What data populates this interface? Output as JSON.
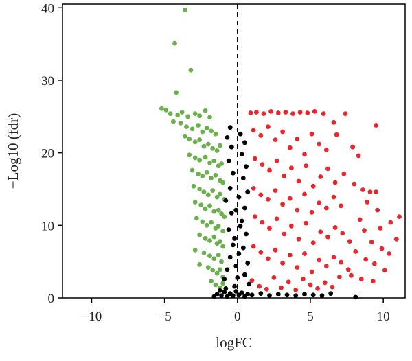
{
  "chart_data": {
    "type": "scatter",
    "title": "",
    "xlabel": "logFC",
    "ylabel": "−Log10 (fdr)",
    "xlim": [
      -12,
      11.5
    ],
    "ylim": [
      0,
      40.5
    ],
    "x_ticks": [
      -10,
      -5,
      0,
      5,
      10
    ],
    "x_tick_labels": [
      "−10",
      "−5",
      "0",
      "5",
      "10"
    ],
    "y_ticks": [
      0,
      10,
      20,
      30,
      40
    ],
    "y_tick_labels": [
      "0",
      "10",
      "20",
      "30",
      "40"
    ],
    "reference_line": {
      "x": 0,
      "style": "dashed",
      "color": "#000000"
    },
    "grid": false,
    "legend": "none",
    "series": [
      {
        "color": "#6ab04c",
        "points": [
          [
            -3.6,
            39.7
          ],
          [
            -4.3,
            35.1
          ],
          [
            -3.2,
            31.4
          ],
          [
            -4.2,
            28.3
          ],
          [
            -5.2,
            26.1
          ],
          [
            -4.9,
            25.9
          ],
          [
            -4.6,
            25.4
          ],
          [
            -4.1,
            25.2
          ],
          [
            -3.8,
            25.6
          ],
          [
            -3.4,
            25.0
          ],
          [
            -2.9,
            25.4
          ],
          [
            -2.6,
            25.1
          ],
          [
            -2.2,
            25.8
          ],
          [
            -1.9,
            24.9
          ],
          [
            -4.4,
            24.3
          ],
          [
            -3.9,
            24.1
          ],
          [
            -3.5,
            23.6
          ],
          [
            -3.1,
            23.3
          ],
          [
            -2.7,
            23.8
          ],
          [
            -2.4,
            22.9
          ],
          [
            -2.1,
            23.4
          ],
          [
            -1.8,
            23.0
          ],
          [
            -1.5,
            22.6
          ],
          [
            -3.6,
            22.3
          ],
          [
            -3.3,
            21.9
          ],
          [
            -2.9,
            21.5
          ],
          [
            -2.6,
            21.8
          ],
          [
            -2.3,
            20.9
          ],
          [
            -2.0,
            21.2
          ],
          [
            -1.7,
            20.6
          ],
          [
            -1.4,
            20.3
          ],
          [
            -1.2,
            21.0
          ],
          [
            -3.3,
            19.7
          ],
          [
            -2.9,
            19.3
          ],
          [
            -2.6,
            19.0
          ],
          [
            -2.2,
            19.4
          ],
          [
            -1.9,
            18.6
          ],
          [
            -1.6,
            18.9
          ],
          [
            -1.3,
            18.2
          ],
          [
            -1.1,
            18.5
          ],
          [
            -3.1,
            17.6
          ],
          [
            -2.7,
            17.1
          ],
          [
            -2.4,
            16.8
          ],
          [
            -2.1,
            17.3
          ],
          [
            -1.8,
            16.5
          ],
          [
            -1.5,
            16.9
          ],
          [
            -1.2,
            16.2
          ],
          [
            -1.0,
            15.9
          ],
          [
            -3.0,
            15.4
          ],
          [
            -2.6,
            15.0
          ],
          [
            -2.3,
            14.6
          ],
          [
            -2.0,
            14.2
          ],
          [
            -1.7,
            14.8
          ],
          [
            -1.4,
            13.9
          ],
          [
            -1.2,
            14.3
          ],
          [
            -0.9,
            13.6
          ],
          [
            -2.9,
            13.2
          ],
          [
            -2.5,
            12.8
          ],
          [
            -2.2,
            12.3
          ],
          [
            -1.9,
            12.7
          ],
          [
            -1.6,
            11.9
          ],
          [
            -1.3,
            12.1
          ],
          [
            -1.1,
            11.6
          ],
          [
            -0.9,
            11.2
          ],
          [
            -2.8,
            11.0
          ],
          [
            -2.4,
            10.5
          ],
          [
            -2.1,
            10.0
          ],
          [
            -1.8,
            10.4
          ],
          [
            -1.5,
            9.6
          ],
          [
            -1.3,
            9.9
          ],
          [
            -1.0,
            9.2
          ],
          [
            -2.6,
            8.7
          ],
          [
            -2.2,
            8.2
          ],
          [
            -1.9,
            7.9
          ],
          [
            -1.6,
            8.4
          ],
          [
            -1.4,
            7.5
          ],
          [
            -1.2,
            7.8
          ],
          [
            -1.0,
            7.1
          ],
          [
            -2.9,
            6.6
          ],
          [
            -2.3,
            6.2
          ],
          [
            -1.9,
            5.8
          ],
          [
            -1.6,
            5.4
          ],
          [
            -1.3,
            5.9
          ],
          [
            -1.1,
            5.0
          ],
          [
            -2.6,
            4.6
          ],
          [
            -2.0,
            4.2
          ],
          [
            -1.7,
            3.8
          ],
          [
            -1.4,
            3.4
          ],
          [
            -1.2,
            3.9
          ],
          [
            -1.0,
            2.9
          ],
          [
            -1.8,
            2.3
          ],
          [
            -1.5,
            1.8
          ],
          [
            -1.2,
            1.4
          ],
          [
            -1.0,
            2.0
          ]
        ]
      },
      {
        "color": "#000000",
        "points": [
          [
            -1.4,
            0.5
          ],
          [
            -1.1,
            0.3
          ],
          [
            -0.9,
            0.8
          ],
          [
            -0.7,
            0.2
          ],
          [
            -0.5,
            0.6
          ],
          [
            -0.3,
            0.3
          ],
          [
            -0.1,
            0.9
          ],
          [
            0.1,
            0.4
          ],
          [
            0.3,
            0.7
          ],
          [
            0.5,
            0.2
          ],
          [
            0.7,
            0.5
          ],
          [
            -0.9,
            2.6
          ],
          [
            -0.7,
            3.9
          ],
          [
            -0.5,
            5.6
          ],
          [
            -0.3,
            7.3
          ],
          [
            -0.6,
            9.4
          ],
          [
            -0.4,
            11.7
          ],
          [
            -0.8,
            13.4
          ],
          [
            -0.5,
            15.1
          ],
          [
            -0.3,
            17.2
          ],
          [
            -0.6,
            18.9
          ],
          [
            -0.4,
            20.8
          ],
          [
            -0.7,
            22.1
          ],
          [
            -0.5,
            23.5
          ],
          [
            0.2,
            22.6
          ],
          [
            0.5,
            21.4
          ],
          [
            0.3,
            19.8
          ],
          [
            0.6,
            18.1
          ],
          [
            0.4,
            16.5
          ],
          [
            0.7,
            14.6
          ],
          [
            0.5,
            12.4
          ],
          [
            0.3,
            10.6
          ],
          [
            0.6,
            8.8
          ],
          [
            0.4,
            6.9
          ],
          [
            0.7,
            4.8
          ],
          [
            0.5,
            3.2
          ],
          [
            0.8,
            1.9
          ],
          [
            -0.2,
            1.6
          ],
          [
            0.0,
            2.8
          ],
          [
            -0.1,
            4.4
          ],
          [
            0.1,
            6.1
          ],
          [
            -0.2,
            8.2
          ],
          [
            0.2,
            9.9
          ],
          [
            -0.1,
            12.1
          ],
          [
            0.1,
            13.9
          ],
          [
            1.0,
            0.4
          ],
          [
            1.6,
            0.6
          ],
          [
            2.2,
            0.3
          ],
          [
            2.8,
            0.5
          ],
          [
            3.4,
            0.4
          ],
          [
            4.0,
            0.3
          ],
          [
            4.6,
            0.5
          ],
          [
            5.2,
            0.4
          ],
          [
            5.8,
            0.3
          ],
          [
            6.4,
            0.6
          ],
          [
            8.1,
            0.1
          ],
          [
            -1.6,
            0.2
          ],
          [
            -1.2,
            1.0
          ],
          [
            -0.8,
            1.3
          ]
        ]
      },
      {
        "color": "#e8262b",
        "points": [
          [
            0.9,
            25.5
          ],
          [
            1.3,
            25.6
          ],
          [
            1.8,
            25.4
          ],
          [
            2.3,
            25.7
          ],
          [
            2.8,
            25.5
          ],
          [
            3.3,
            25.6
          ],
          [
            3.8,
            25.4
          ],
          [
            4.3,
            25.6
          ],
          [
            4.8,
            25.5
          ],
          [
            5.3,
            25.7
          ],
          [
            5.9,
            25.4
          ],
          [
            1.1,
            23.1
          ],
          [
            1.6,
            22.4
          ],
          [
            2.1,
            23.6
          ],
          [
            2.6,
            21.8
          ],
          [
            3.1,
            22.9
          ],
          [
            3.6,
            20.7
          ],
          [
            4.1,
            21.9
          ],
          [
            4.6,
            19.8
          ],
          [
            5.1,
            22.6
          ],
          [
            5.6,
            21.2
          ],
          [
            6.1,
            20.4
          ],
          [
            1.2,
            19.2
          ],
          [
            1.7,
            18.4
          ],
          [
            2.2,
            17.6
          ],
          [
            2.7,
            18.9
          ],
          [
            3.2,
            16.8
          ],
          [
            3.7,
            17.9
          ],
          [
            4.2,
            16.1
          ],
          [
            4.7,
            18.2
          ],
          [
            5.2,
            15.4
          ],
          [
            5.7,
            16.7
          ],
          [
            6.2,
            17.8
          ],
          [
            6.7,
            15.9
          ],
          [
            1.1,
            15.1
          ],
          [
            1.6,
            14.2
          ],
          [
            2.1,
            13.6
          ],
          [
            2.6,
            14.8
          ],
          [
            3.1,
            12.9
          ],
          [
            3.6,
            13.7
          ],
          [
            4.1,
            12.1
          ],
          [
            4.6,
            14.3
          ],
          [
            5.1,
            11.8
          ],
          [
            5.6,
            13.1
          ],
          [
            6.1,
            12.4
          ],
          [
            6.6,
            13.9
          ],
          [
            7.1,
            12.7
          ],
          [
            1.2,
            11.2
          ],
          [
            1.7,
            10.4
          ],
          [
            2.2,
            9.6
          ],
          [
            2.7,
            10.9
          ],
          [
            3.2,
            8.8
          ],
          [
            3.7,
            9.9
          ],
          [
            4.2,
            8.1
          ],
          [
            4.7,
            10.3
          ],
          [
            5.2,
            7.6
          ],
          [
            5.7,
            9.1
          ],
          [
            6.2,
            8.4
          ],
          [
            6.7,
            9.7
          ],
          [
            7.2,
            8.9
          ],
          [
            7.7,
            7.8
          ],
          [
            1.1,
            7.1
          ],
          [
            1.6,
            6.3
          ],
          [
            2.1,
            5.4
          ],
          [
            2.6,
            6.6
          ],
          [
            3.1,
            4.8
          ],
          [
            3.6,
            5.9
          ],
          [
            4.1,
            4.2
          ],
          [
            4.6,
            6.1
          ],
          [
            5.1,
            3.6
          ],
          [
            5.6,
            5.2
          ],
          [
            6.1,
            4.4
          ],
          [
            6.6,
            5.6
          ],
          [
            7.1,
            4.9
          ],
          [
            7.6,
            3.9
          ],
          [
            1.0,
            2.4
          ],
          [
            1.5,
            1.6
          ],
          [
            2.0,
            1.2
          ],
          [
            2.5,
            2.8
          ],
          [
            3.0,
            1.4
          ],
          [
            3.5,
            2.2
          ],
          [
            4.0,
            1.1
          ],
          [
            4.5,
            2.6
          ],
          [
            5.0,
            1.8
          ],
          [
            5.5,
            1.3
          ],
          [
            6.0,
            2.1
          ],
          [
            6.5,
            1.5
          ],
          [
            7.0,
            2.9
          ],
          [
            9.5,
            23.8
          ],
          [
            7.4,
            25.4
          ],
          [
            6.6,
            24.2
          ],
          [
            7.9,
            20.8
          ],
          [
            8.3,
            19.6
          ],
          [
            6.8,
            22.5
          ],
          [
            7.3,
            17.1
          ],
          [
            8.0,
            15.7
          ],
          [
            8.6,
            14.9
          ],
          [
            9.1,
            14.6
          ],
          [
            9.5,
            14.6
          ],
          [
            8.9,
            13.2
          ],
          [
            9.6,
            12.1
          ],
          [
            11.1,
            11.2
          ],
          [
            10.5,
            10.4
          ],
          [
            9.8,
            9.6
          ],
          [
            10.9,
            8.1
          ],
          [
            8.4,
            10.8
          ],
          [
            8.7,
            9.3
          ],
          [
            9.2,
            7.7
          ],
          [
            9.9,
            6.8
          ],
          [
            10.4,
            6.1
          ],
          [
            8.1,
            6.4
          ],
          [
            8.8,
            5.3
          ],
          [
            9.4,
            4.7
          ],
          [
            10.1,
            3.8
          ],
          [
            7.8,
            3.1
          ],
          [
            8.5,
            2.6
          ],
          [
            9.3,
            2.3
          ]
        ]
      }
    ]
  }
}
